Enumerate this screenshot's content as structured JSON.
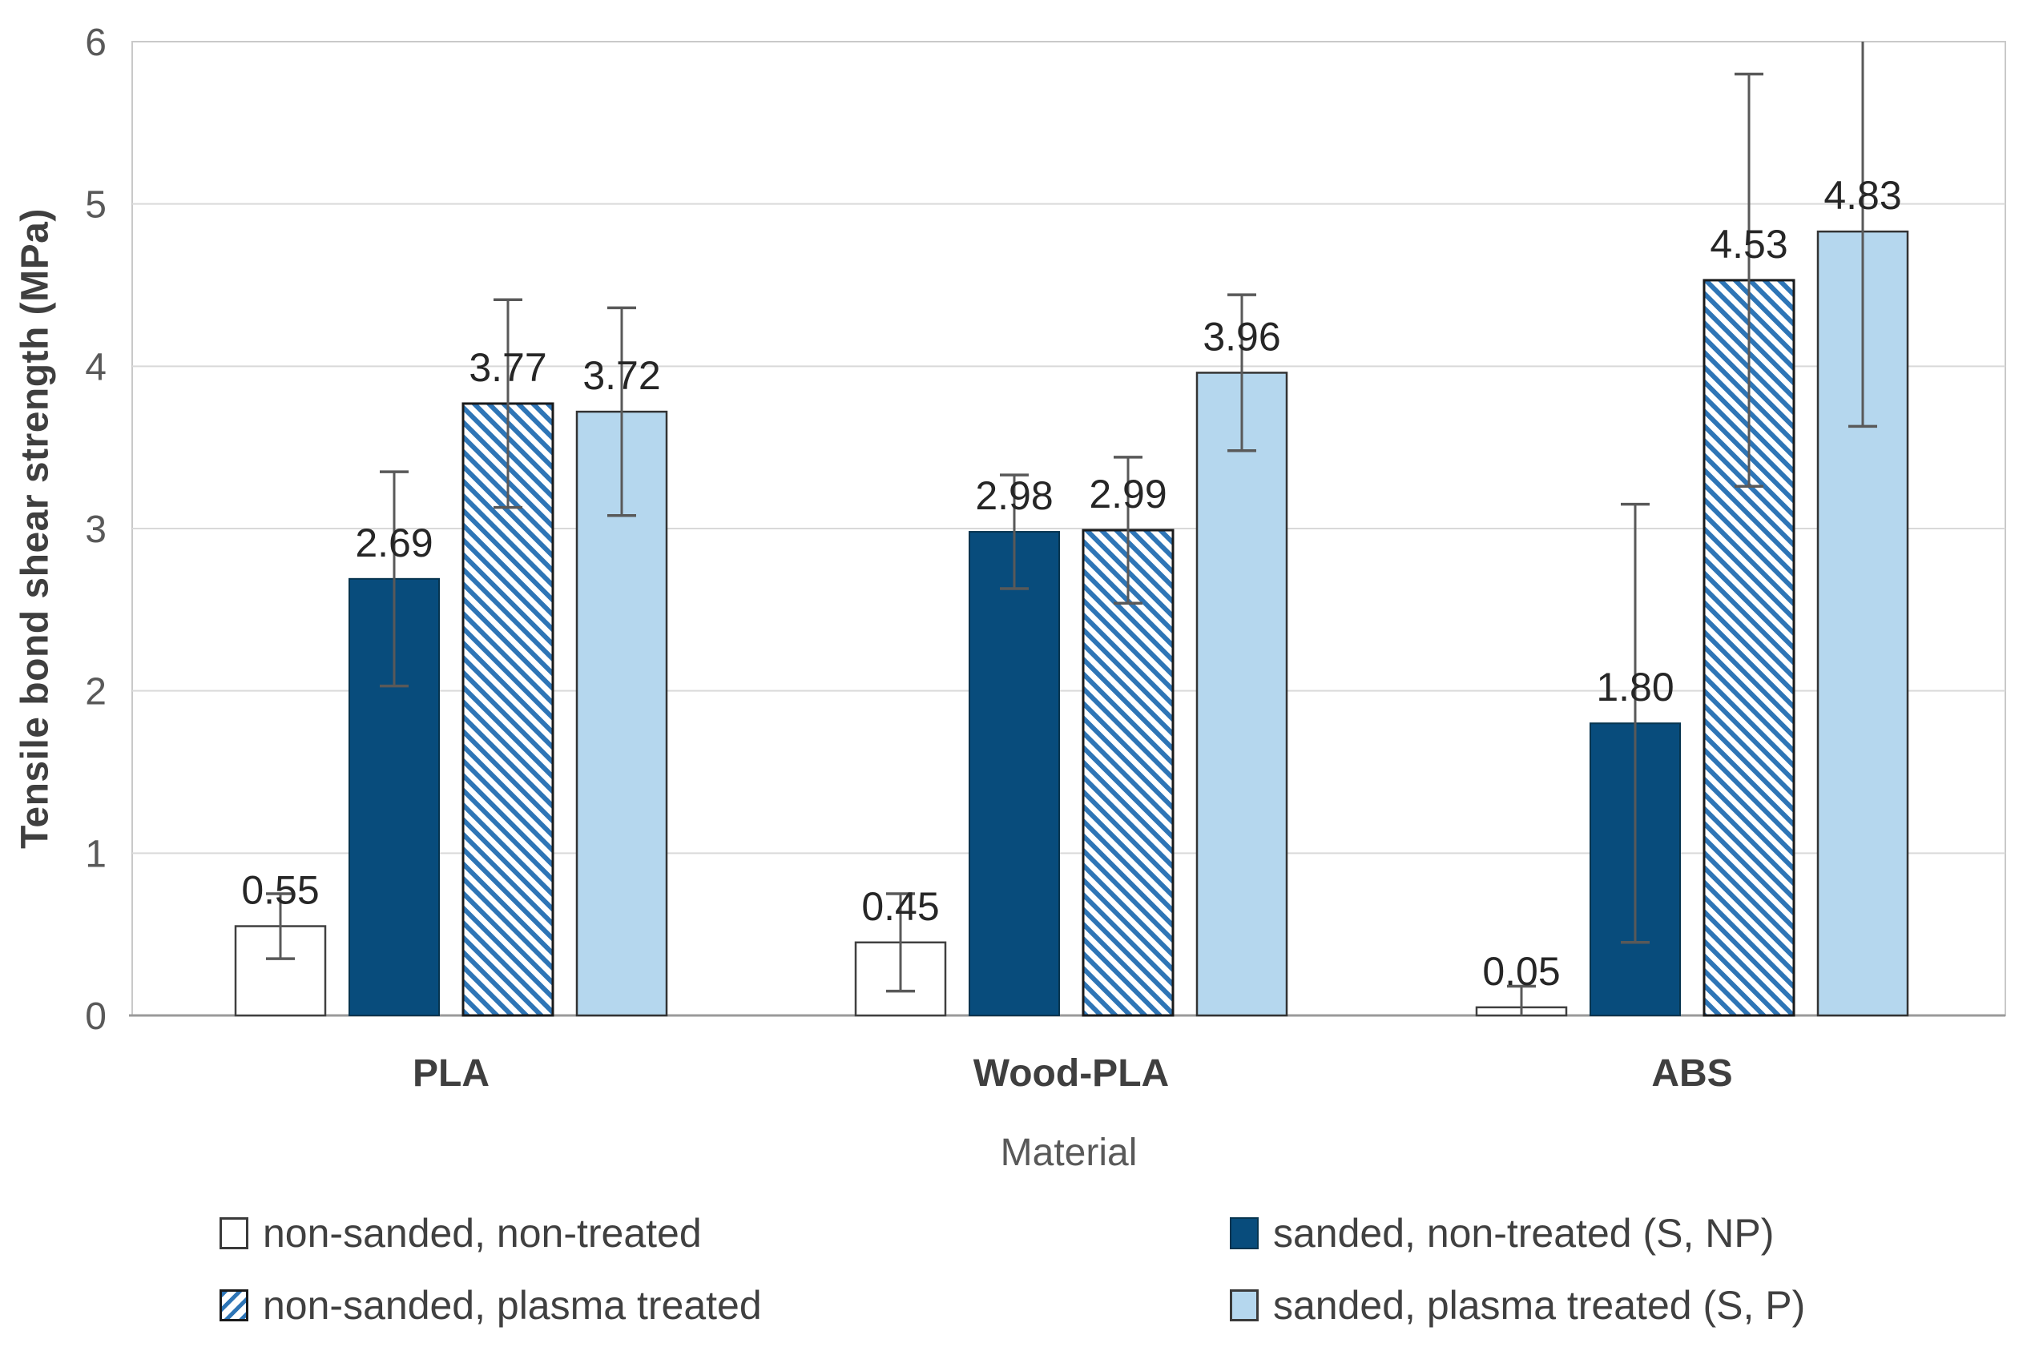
{
  "chart_data": {
    "type": "bar",
    "title": "",
    "xlabel": "Material",
    "ylabel": "Tensile bond shear strength (MPa)",
    "ylim": [
      0,
      6
    ],
    "yticks": [
      0,
      1,
      2,
      3,
      4,
      5,
      6
    ],
    "grid": true,
    "legend_position": "bottom-two-columns",
    "categories": [
      "PLA",
      "Wood-PLA",
      "ABS"
    ],
    "series": [
      {
        "name": "non-sanded, non-treated",
        "style": "white",
        "values": [
          0.55,
          0.45,
          0.05
        ],
        "errors_plus_minus": [
          0.2,
          0.3,
          0.13
        ]
      },
      {
        "name": "sanded, non-treated (S, NP)",
        "style": "navy",
        "values": [
          2.69,
          2.98,
          1.8
        ],
        "errors_plus_minus": [
          0.66,
          0.35,
          1.35
        ]
      },
      {
        "name": "non-sanded, plasma treated",
        "style": "hatch",
        "values": [
          3.77,
          2.99,
          4.53
        ],
        "errors_plus_minus": [
          0.64,
          0.45,
          1.27
        ]
      },
      {
        "name": "sanded, plasma treated (S, P)",
        "style": "light",
        "values": [
          3.72,
          3.96,
          4.83
        ],
        "errors_plus_minus": [
          0.64,
          0.48,
          1.2
        ]
      }
    ],
    "value_label_decimals": 2,
    "colors": {
      "navy": "#084c7c",
      "light_blue": "#b5d7ee",
      "hatch_blue": "#2e75b6",
      "white": "#ffffff",
      "gridline": "#d9d9d9",
      "plot_border": "#c9c9c9",
      "axis_line": "#9a9a9a",
      "error_bar": "#595959",
      "tick_label": "#595959",
      "category_label": "#3f3f3f",
      "data_label": "#262626"
    }
  }
}
